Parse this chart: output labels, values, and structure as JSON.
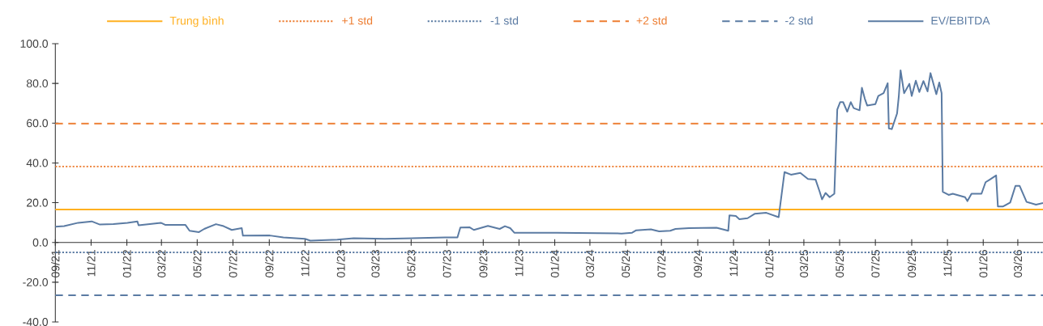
{
  "chart_data": {
    "type": "line",
    "x": [
      "2021-09-01",
      "2021-09-16",
      "2021-10-10",
      "2021-11-02",
      "2021-11-16",
      "2021-12-09",
      "2022-01-02",
      "2022-01-19",
      "2022-01-21",
      "2022-02-28",
      "2022-03-08",
      "2022-04-11",
      "2022-04-18",
      "2022-05-04",
      "2022-05-13",
      "2022-06-02",
      "2022-06-15",
      "2022-06-29",
      "2022-07-16",
      "2022-07-18",
      "2022-09-02",
      "2022-09-25",
      "2022-11-01",
      "2022-11-10",
      "2022-12-26",
      "2023-01-23",
      "2023-03-17",
      "2023-06-28",
      "2023-07-19",
      "2023-07-24",
      "2023-08-09",
      "2023-08-16",
      "2023-09-09",
      "2023-09-29",
      "2023-10-08",
      "2023-10-17",
      "2023-10-24",
      "2024-01-04",
      "2024-04-24",
      "2024-05-12",
      "2024-05-19",
      "2024-06-13",
      "2024-06-27",
      "2024-07-16",
      "2024-07-25",
      "2024-08-17",
      "2024-10-03",
      "2024-10-23",
      "2024-10-25",
      "2024-11-05",
      "2024-11-11",
      "2024-11-25",
      "2024-12-07",
      "2024-12-27",
      "2025-01-17",
      "2025-01-27",
      "2025-02-07",
      "2025-02-23",
      "2025-03-08",
      "2025-03-21",
      "2025-03-28",
      "2025-04-01",
      "2025-04-07",
      "2025-04-14",
      "2025-04-22",
      "2025-04-27",
      "2025-05-02",
      "2025-05-07",
      "2025-05-14",
      "2025-05-20",
      "2025-05-25",
      "2025-06-04",
      "2025-06-08",
      "2025-06-13",
      "2025-06-17",
      "2025-07-01",
      "2025-07-06",
      "2025-07-15",
      "2025-07-22",
      "2025-07-24",
      "2025-07-29",
      "2025-08-07",
      "2025-08-10",
      "2025-08-13",
      "2025-08-19",
      "2025-08-28",
      "2025-09-01",
      "2025-09-08",
      "2025-09-14",
      "2025-09-21",
      "2025-09-28",
      "2025-10-03",
      "2025-10-13",
      "2025-10-18",
      "2025-10-22",
      "2025-10-24",
      "2025-11-03",
      "2025-11-10",
      "2025-12-01",
      "2025-12-05",
      "2025-12-12",
      "2025-12-29",
      "2026-01-05",
      "2026-01-12",
      "2026-01-23",
      "2026-01-26",
      "2026-02-04",
      "2026-02-16",
      "2026-02-25",
      "2026-03-04",
      "2026-03-16",
      "2026-04-01",
      "2026-04-13"
    ],
    "series": [
      {
        "name": "Trung bình",
        "color": "#ffb020",
        "line_style": "solid",
        "x": [
          "2021-09-01",
          "2026-04-13"
        ],
        "values": [
          16.6,
          16.6
        ]
      },
      {
        "name": "+1 std",
        "color": "#ed7d31",
        "line_style": "dotted",
        "x": [
          "2021-09-01",
          "2026-04-13"
        ],
        "values": [
          38.2,
          38.2
        ]
      },
      {
        "name": "-1 std",
        "color": "#5b7ba3",
        "line_style": "dotted",
        "x": [
          "2021-09-01",
          "2026-04-13"
        ],
        "values": [
          -5.0,
          -5.0
        ]
      },
      {
        "name": "+2 std",
        "color": "#ed7d31",
        "line_style": "dashed",
        "x": [
          "2021-09-01",
          "2026-04-13"
        ],
        "values": [
          59.8,
          59.8
        ]
      },
      {
        "name": "-2 std",
        "color": "#5b7ba3",
        "line_style": "dashed",
        "x": [
          "2021-09-01",
          "2026-04-13"
        ],
        "values": [
          -26.6,
          -26.6
        ]
      },
      {
        "name": "EV/EBITDA",
        "color": "#5b7ba3",
        "line_style": "solid",
        "values": [
          7.9,
          8.2,
          9.9,
          10.6,
          9.0,
          9.2,
          9.9,
          10.6,
          8.6,
          9.9,
          8.8,
          8.8,
          5.9,
          5.2,
          6.8,
          9.2,
          8.2,
          6.3,
          7.2,
          3.4,
          3.5,
          2.5,
          1.8,
          0.9,
          1.4,
          2.1,
          1.8,
          2.5,
          2.5,
          7.5,
          7.6,
          6.3,
          8.3,
          6.8,
          8.2,
          7.2,
          4.9,
          4.9,
          4.5,
          4.9,
          6.1,
          6.6,
          5.6,
          5.9,
          6.8,
          7.2,
          7.4,
          5.9,
          13.6,
          13.3,
          11.7,
          12.2,
          14.4,
          14.9,
          12.7,
          35.4,
          34.1,
          35.0,
          31.9,
          31.6,
          25.5,
          21.7,
          24.9,
          22.8,
          24.5,
          66.9,
          70.6,
          70.6,
          65.8,
          70.6,
          67.6,
          66.5,
          77.8,
          72.3,
          68.9,
          69.6,
          73.7,
          75.1,
          80.1,
          57.4,
          57.0,
          64.9,
          73.7,
          86.6,
          75.1,
          79.8,
          73.7,
          81.4,
          75.7,
          81.2,
          76.0,
          85.2,
          74.6,
          80.5,
          75.1,
          25.5,
          23.9,
          24.5,
          22.8,
          20.8,
          24.5,
          24.5,
          30.3,
          31.6,
          33.7,
          18.1,
          18.1,
          20.1,
          28.5,
          28.5,
          20.4,
          19.0,
          19.8
        ]
      }
    ],
    "xlim": [
      "2021-09-01",
      "2026-04-13"
    ],
    "ylim": [
      -40,
      100
    ],
    "xticks": [
      {
        "value": "2021-09-01",
        "label": "09/21"
      },
      {
        "value": "2021-11-01",
        "label": "11/21"
      },
      {
        "value": "2022-01-01",
        "label": "01/22"
      },
      {
        "value": "2022-03-01",
        "label": "03/22"
      },
      {
        "value": "2022-05-01",
        "label": "05/22"
      },
      {
        "value": "2022-07-01",
        "label": "07/22"
      },
      {
        "value": "2022-09-01",
        "label": "09/22"
      },
      {
        "value": "2022-11-01",
        "label": "11/22"
      },
      {
        "value": "2023-01-01",
        "label": "01/23"
      },
      {
        "value": "2023-03-01",
        "label": "03/23"
      },
      {
        "value": "2023-05-01",
        "label": "05/23"
      },
      {
        "value": "2023-07-01",
        "label": "07/23"
      },
      {
        "value": "2023-09-01",
        "label": "09/23"
      },
      {
        "value": "2023-11-01",
        "label": "11/23"
      },
      {
        "value": "2024-01-01",
        "label": "01/24"
      },
      {
        "value": "2024-03-01",
        "label": "03/24"
      },
      {
        "value": "2024-05-01",
        "label": "05/24"
      },
      {
        "value": "2024-07-01",
        "label": "07/24"
      },
      {
        "value": "2024-09-01",
        "label": "09/24"
      },
      {
        "value": "2024-11-01",
        "label": "11/24"
      },
      {
        "value": "2025-01-01",
        "label": "01/25"
      },
      {
        "value": "2025-03-01",
        "label": "03/25"
      },
      {
        "value": "2025-05-01",
        "label": "05/25"
      },
      {
        "value": "2025-07-01",
        "label": "07/25"
      },
      {
        "value": "2025-09-01",
        "label": "09/25"
      },
      {
        "value": "2025-11-01",
        "label": "11/25"
      },
      {
        "value": "2026-01-01",
        "label": "01/26"
      },
      {
        "value": "2026-03-01",
        "label": "03/26"
      }
    ],
    "yticks": [
      {
        "value": -40,
        "label": "-40.0"
      },
      {
        "value": -20,
        "label": "-20.0"
      },
      {
        "value": 0,
        "label": "0.0"
      },
      {
        "value": 20,
        "label": "20.0"
      },
      {
        "value": 40,
        "label": "40.0"
      },
      {
        "value": 60,
        "label": "60.0"
      },
      {
        "value": 80,
        "label": "80.0"
      },
      {
        "value": 100,
        "label": "100.0"
      }
    ],
    "legend": "top"
  }
}
